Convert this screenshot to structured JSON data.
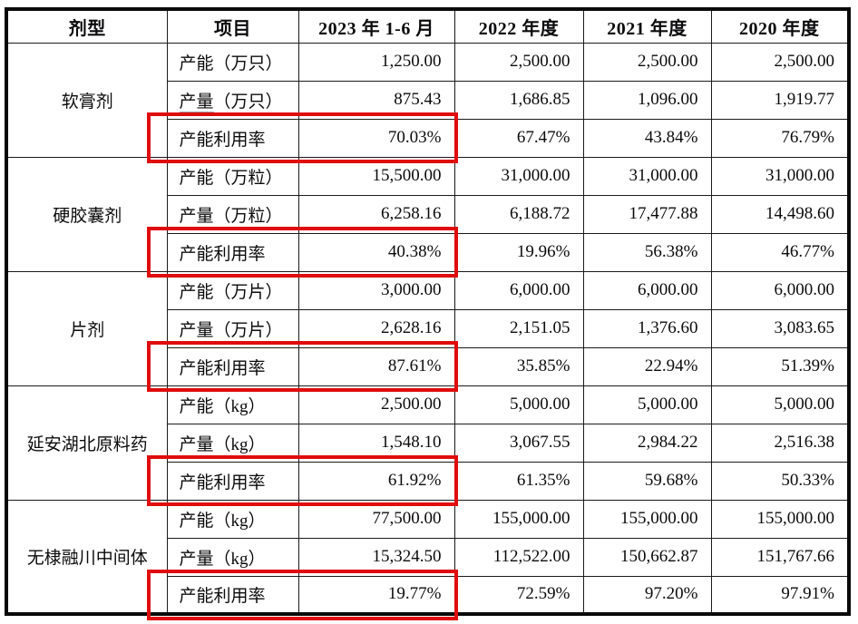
{
  "table": {
    "columns": [
      "剂型",
      "项目",
      "2023 年 1-6 月",
      "2022 年度",
      "2021 年度",
      "2020 年度"
    ],
    "groups": [
      {
        "category": "软膏剂",
        "rows": [
          {
            "item": "产能（万只）",
            "values": [
              "1,250.00",
              "2,500.00",
              "2,500.00",
              "2,500.00"
            ],
            "highlighted": false
          },
          {
            "item": "产量（万只）",
            "underline_prefix": 2,
            "values": [
              "875.43",
              "1,686.85",
              "1,096.00",
              "1,919.77"
            ],
            "highlighted": false
          },
          {
            "item": "产能利用率",
            "values": [
              "70.03%",
              "67.47%",
              "43.84%",
              "76.79%"
            ],
            "highlighted": true
          }
        ]
      },
      {
        "category": "硬胶囊剂",
        "rows": [
          {
            "item": "产能（万粒）",
            "values": [
              "15,500.00",
              "31,000.00",
              "31,000.00",
              "31,000.00"
            ],
            "highlighted": false
          },
          {
            "item": "产量（万粒）",
            "values": [
              "6,258.16",
              "6,188.72",
              "17,477.88",
              "14,498.60"
            ],
            "highlighted": false
          },
          {
            "item": "产能利用率",
            "values": [
              "40.38%",
              "19.96%",
              "56.38%",
              "46.77%"
            ],
            "highlighted": true
          }
        ]
      },
      {
        "category": "片剂",
        "rows": [
          {
            "item": "产能（万片）",
            "values": [
              "3,000.00",
              "6,000.00",
              "6,000.00",
              "6,000.00"
            ],
            "highlighted": false
          },
          {
            "item": "产量（万片）",
            "values": [
              "2,628.16",
              "2,151.05",
              "1,376.60",
              "3,083.65"
            ],
            "highlighted": false
          },
          {
            "item": "产能利用率",
            "values": [
              "87.61%",
              "35.85%",
              "22.94%",
              "51.39%"
            ],
            "highlighted": true
          }
        ]
      },
      {
        "category": "延安湖北原料药",
        "rows": [
          {
            "item": "产能（kg）",
            "values": [
              "2,500.00",
              "5,000.00",
              "5,000.00",
              "5,000.00"
            ],
            "highlighted": false
          },
          {
            "item": "产量（kg）",
            "values": [
              "1,548.10",
              "3,067.55",
              "2,984.22",
              "2,516.38"
            ],
            "highlighted": false
          },
          {
            "item": "产能利用率",
            "values": [
              "61.92%",
              "61.35%",
              "59.68%",
              "50.33%"
            ],
            "highlighted": true
          }
        ]
      },
      {
        "category": "无棣融川中间体",
        "rows": [
          {
            "item": "产能（kg）",
            "values": [
              "77,500.00",
              "155,000.00",
              "155,000.00",
              "155,000.00"
            ],
            "highlighted": false
          },
          {
            "item": "产量（kg）",
            "values": [
              "15,324.50",
              "112,522.00",
              "150,662.87",
              "151,767.66"
            ],
            "highlighted": false
          },
          {
            "item": "产能利用率",
            "values": [
              "19.77%",
              "72.59%",
              "97.20%",
              "97.91%"
            ],
            "highlighted": true
          }
        ]
      }
    ]
  },
  "annotations": {
    "highlight_color": "#e00d0d",
    "highlight_description": "red boxes around 产能利用率 rows spanning 项目 and 2023 年 1-6 月 columns"
  }
}
